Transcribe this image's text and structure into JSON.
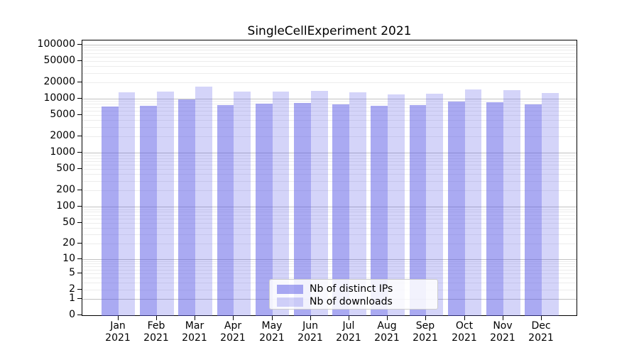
{
  "chart_data": {
    "type": "bar",
    "title": "SingleCellExperiment 2021",
    "categories": [
      "Jan",
      "Feb",
      "Mar",
      "Apr",
      "May",
      "Jun",
      "Jul",
      "Aug",
      "Sep",
      "Oct",
      "Nov",
      "Dec"
    ],
    "year_label": "2021",
    "series": [
      {
        "name": "Nb of distinct IPs",
        "values": [
          7200,
          7300,
          9600,
          7500,
          8100,
          8300,
          7900,
          7300,
          7700,
          8800,
          8700,
          7900
        ]
      },
      {
        "name": "Nb of downloads",
        "values": [
          13000,
          13400,
          16800,
          13600,
          13500,
          14000,
          13100,
          12100,
          12500,
          14800,
          14500,
          12800
        ]
      }
    ],
    "y_axis": {
      "scale": "log1p",
      "tick_values": [
        0,
        1,
        2,
        5,
        10,
        20,
        50,
        100,
        200,
        500,
        1000,
        2000,
        5000,
        10000,
        20000,
        50000,
        100000
      ],
      "major_gridline_values": [
        1,
        10,
        100,
        1000,
        10000,
        100000
      ],
      "minor_gridline_decades": [
        1,
        10,
        100,
        1000,
        10000
      ],
      "range": [
        0,
        100000
      ]
    },
    "legend": {
      "items": [
        "Nb of distinct IPs",
        "Nb of downloads"
      ],
      "position": "lower-center-inside"
    },
    "colors": {
      "bar_base": "#5555e6",
      "dark_bar_alpha": 0.5,
      "light_bar_alpha": 0.25,
      "dark_bar_hex": "#aaaaf2",
      "light_bar_hex": "#d5d5f9",
      "major_grid": "#c2c2c2",
      "minor_grid": "#ececec"
    }
  }
}
